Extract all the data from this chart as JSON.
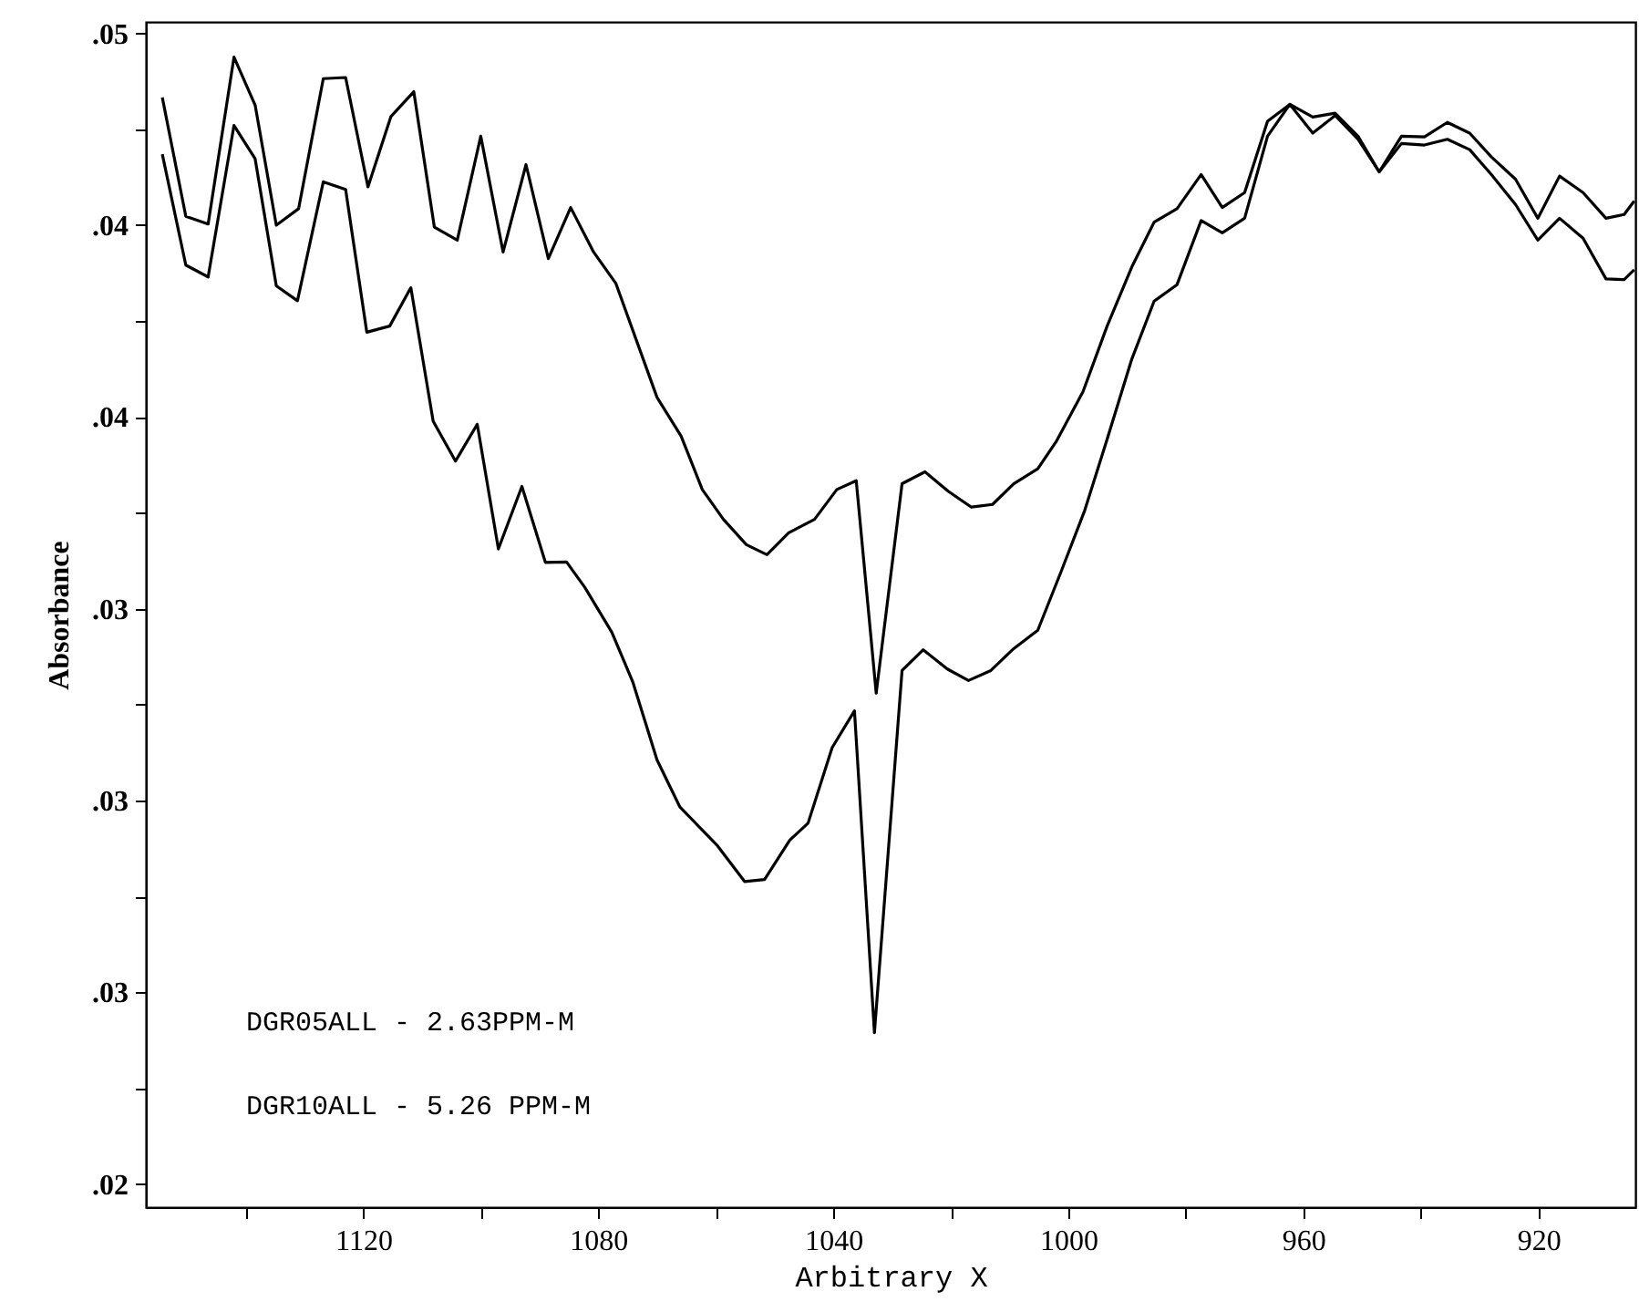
{
  "chart_data": {
    "type": "line",
    "xlabel": "Arbitrary X",
    "ylabel": "Absorbance",
    "annotations": [
      "DGR05ALL - 2.63PPM-M",
      "DGR10ALL - 5.26 PPM-M"
    ],
    "xlim": [
      1157,
      903.5
    ],
    "ylim": [
      0.0194,
      0.0503
    ],
    "xticks": [
      {
        "value": 1140,
        "label": null
      },
      1120,
      {
        "value": 1100,
        "label": null
      },
      1080,
      {
        "value": 1060,
        "label": null
      },
      1040,
      {
        "value": 1020,
        "label": null
      },
      1000,
      {
        "value": 980,
        "label": null
      },
      960,
      {
        "value": 940,
        "label": null
      },
      920
    ],
    "yticks": [
      {
        "value": 0.05,
        "label": ".05"
      },
      {
        "value": 0.0475,
        "label": null
      },
      {
        "value": 0.045,
        "label": ".04"
      },
      {
        "value": 0.0425,
        "label": null
      },
      {
        "value": 0.04,
        "label": ".04"
      },
      {
        "value": 0.0375,
        "label": null
      },
      {
        "value": 0.035,
        "label": ".03"
      },
      {
        "value": 0.0325,
        "label": null
      },
      {
        "value": 0.03,
        "label": ".03"
      },
      {
        "value": 0.0275,
        "label": null
      },
      {
        "value": 0.025,
        "label": ".03"
      },
      {
        "value": 0.0225,
        "label": null
      },
      {
        "value": 0.02,
        "label": ".02"
      }
    ],
    "grid": false,
    "marker": "none",
    "line_style": "solid",
    "series": [
      {
        "color": "#000000",
        "x": [
          1154.2,
          1150.2,
          1146.4,
          1142.0,
          1138.4,
          1134.8,
          1131.0,
          1126.8,
          1123.0,
          1119.2,
          1115.3,
          1111.4,
          1107.9,
          1104.0,
          1100.0,
          1096.2,
          1092.3,
          1088.5,
          1084.7,
          1080.8,
          1077.0,
          1070.0,
          1065.9,
          1062.3,
          1058.7,
          1054.8,
          1051.3,
          1047.6,
          1043.2,
          1039.4,
          1036.1,
          1032.7,
          1028.3,
          1024.4,
          1020.4,
          1016.5,
          1012.9,
          1009.3,
          1005.2,
          1002.1,
          997.5,
          993.4,
          989.2,
          985.4,
          981.5,
          977.4,
          973.8,
          970.0,
          966.1,
          962.3,
          958.4,
          954.6,
          950.7,
          947.1,
          943.3,
          939.4,
          935.5,
          931.7,
          928.0,
          923.9,
          920.1,
          916.4,
          912.4,
          908.5,
          905.4,
          903.7
        ],
        "values": [
          0.04833,
          0.04523,
          0.04503,
          0.04938,
          0.04813,
          0.045,
          0.04543,
          0.04882,
          0.04885,
          0.046,
          0.04783,
          0.04848,
          0.04495,
          0.04461,
          0.04732,
          0.0443,
          0.04658,
          0.04413,
          0.04546,
          0.0443,
          0.04348,
          0.04051,
          0.0395,
          0.03811,
          0.03733,
          0.03667,
          0.03641,
          0.03698,
          0.03733,
          0.03811,
          0.03834,
          0.0328,
          0.03826,
          0.03857,
          0.03806,
          0.03765,
          0.03772,
          0.03826,
          0.03865,
          0.03935,
          0.04066,
          0.04237,
          0.04391,
          0.04508,
          0.04543,
          0.04632,
          0.04546,
          0.04585,
          0.04771,
          0.04815,
          0.04782,
          0.04792,
          0.04732,
          0.04639,
          0.04732,
          0.0473,
          0.04768,
          0.0474,
          0.04678,
          0.0462,
          0.04518,
          0.04628,
          0.04585,
          0.04518,
          0.04528,
          0.04563
        ]
      },
      {
        "color": "#000000",
        "x": [
          1154.2,
          1150.2,
          1146.4,
          1142.0,
          1138.4,
          1134.8,
          1131.2,
          1126.8,
          1123.0,
          1119.4,
          1115.5,
          1111.9,
          1108.1,
          1104.3,
          1100.6,
          1097.0,
          1093.0,
          1089.0,
          1085.4,
          1082.3,
          1077.7,
          1074.1,
          1070.0,
          1066.1,
          1059.7,
          1055.1,
          1051.7,
          1047.4,
          1044.3,
          1040.2,
          1036.4,
          1033.0,
          1028.3,
          1024.7,
          1020.6,
          1017.0,
          1013.2,
          1009.3,
          1005.2,
          1001.1,
          997.2,
          993.4,
          989.2,
          985.4,
          981.5,
          977.4,
          973.8,
          970.0,
          966.1,
          962.3,
          958.4,
          954.6,
          950.7,
          947.1,
          943.3,
          939.4,
          935.5,
          931.7,
          928.0,
          923.9,
          920.1,
          916.4,
          912.4,
          908.5,
          905.4,
          903.7
        ],
        "values": [
          0.04685,
          0.04396,
          0.04365,
          0.0476,
          0.04673,
          0.04342,
          0.04303,
          0.04613,
          0.04593,
          0.04221,
          0.04237,
          0.04337,
          0.03989,
          0.03885,
          0.03981,
          0.03656,
          0.03819,
          0.03621,
          0.03622,
          0.03556,
          0.03439,
          0.03308,
          0.03106,
          0.02983,
          0.02882,
          0.02789,
          0.02794,
          0.02897,
          0.02941,
          0.03138,
          0.03234,
          0.02395,
          0.03339,
          0.03393,
          0.03343,
          0.03313,
          0.03339,
          0.03396,
          0.03444,
          0.03602,
          0.03757,
          0.03942,
          0.04151,
          0.04302,
          0.04345,
          0.04512,
          0.0448,
          0.04518,
          0.04732,
          0.04815,
          0.0474,
          0.04786,
          0.04724,
          0.04639,
          0.04713,
          0.04709,
          0.04724,
          0.04697,
          0.04632,
          0.04554,
          0.04461,
          0.04518,
          0.04466,
          0.0436,
          0.04358,
          0.04384
        ]
      }
    ]
  }
}
